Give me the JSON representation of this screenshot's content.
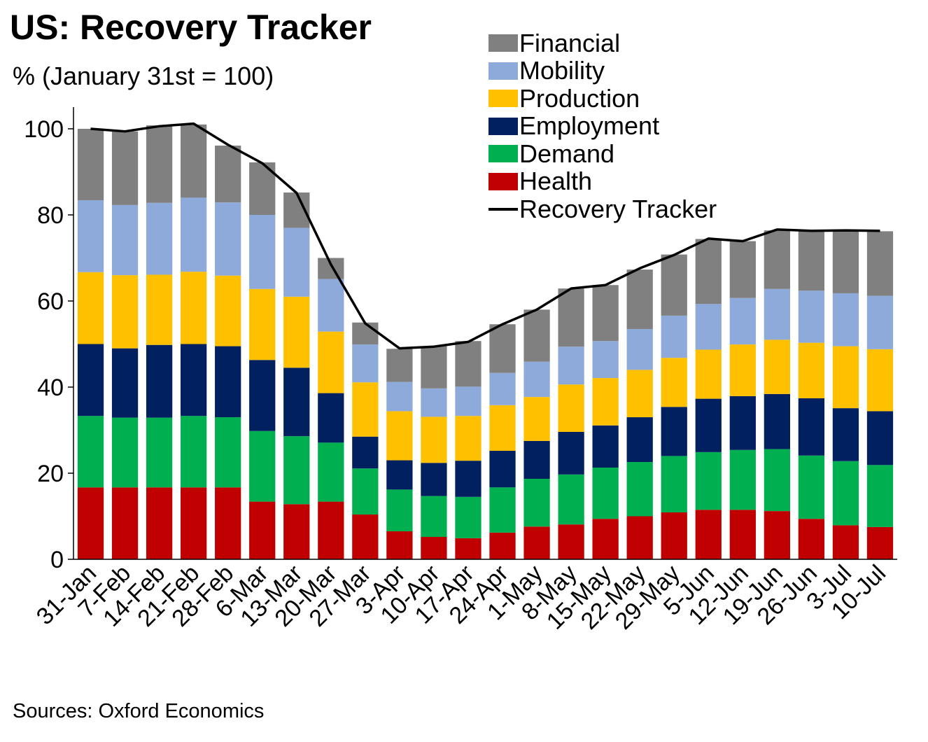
{
  "title": "US: Recovery Tracker",
  "subtitle": "% (January 31st = 100)",
  "source": "Sources: Oxford Economics",
  "chart_data": {
    "type": "bar",
    "stacked": true,
    "title": "US: Recovery Tracker",
    "ylabel": "% (January 31st = 100)",
    "xlabel": "",
    "ylim": [
      0,
      105
    ],
    "yticks": [
      0,
      20,
      40,
      60,
      80,
      100
    ],
    "grid": false,
    "legend_position": "top-right",
    "categories": [
      "31-Jan",
      "7-Feb",
      "14-Feb",
      "21-Feb",
      "28-Feb",
      "6-Mar",
      "13-Mar",
      "20-Mar",
      "27-Mar",
      "3-Apr",
      "10-Apr",
      "17-Apr",
      "24-Apr",
      "1-May",
      "8-May",
      "15-May",
      "22-May",
      "29-May",
      "5-Jun",
      "12-Jun",
      "19-Jun",
      "26-Jun",
      "3-Jul",
      "10-Jul"
    ],
    "series": [
      {
        "name": "Health",
        "color": "#c00000",
        "values": [
          16.7,
          16.7,
          16.7,
          16.7,
          16.7,
          13.4,
          12.8,
          13.4,
          10.4,
          6.5,
          5.2,
          4.9,
          6.2,
          7.6,
          8.1,
          9.4,
          10.0,
          10.9,
          11.5,
          11.5,
          11.2,
          9.4,
          7.9,
          7.5
        ]
      },
      {
        "name": "Demand",
        "color": "#00b050",
        "values": [
          16.6,
          16.2,
          16.2,
          16.6,
          16.3,
          16.4,
          15.8,
          13.7,
          10.7,
          9.7,
          9.5,
          9.6,
          10.5,
          11.1,
          11.6,
          11.9,
          12.6,
          13.1,
          13.4,
          13.9,
          14.4,
          14.7,
          14.9,
          14.4
        ]
      },
      {
        "name": "Employment",
        "color": "#002060",
        "values": [
          16.7,
          16.1,
          16.9,
          16.7,
          16.5,
          16.5,
          15.9,
          11.5,
          7.4,
          6.8,
          7.7,
          8.4,
          8.5,
          8.8,
          9.9,
          9.8,
          10.4,
          11.4,
          12.4,
          12.5,
          12.8,
          13.3,
          12.3,
          12.5
        ]
      },
      {
        "name": "Production",
        "color": "#ffc000",
        "values": [
          16.7,
          17.0,
          16.3,
          16.8,
          16.4,
          16.5,
          16.5,
          14.3,
          12.6,
          11.4,
          10.7,
          10.4,
          10.6,
          10.2,
          11.0,
          11.0,
          11.0,
          11.4,
          11.4,
          12.0,
          12.6,
          12.9,
          14.4,
          14.4
        ]
      },
      {
        "name": "Mobility",
        "color": "#8eaadb",
        "values": [
          16.7,
          16.3,
          16.7,
          17.2,
          17.0,
          17.2,
          16.0,
          12.2,
          8.8,
          6.8,
          6.6,
          6.8,
          7.5,
          8.2,
          8.8,
          8.6,
          9.5,
          9.8,
          10.6,
          10.8,
          11.8,
          12.1,
          12.3,
          12.4
        ]
      },
      {
        "name": "Financial",
        "color": "#808080",
        "values": [
          16.6,
          17.1,
          18.0,
          17.0,
          13.2,
          12.2,
          8.2,
          4.9,
          5.1,
          7.7,
          9.8,
          10.6,
          11.3,
          12.1,
          13.5,
          13.0,
          13.8,
          14.2,
          15.1,
          13.2,
          13.6,
          13.9,
          14.5,
          15.0
        ]
      }
    ],
    "line_series": {
      "name": "Recovery Tracker",
      "color": "#000000",
      "values": [
        100.0,
        99.4,
        100.6,
        101.2,
        96.3,
        92.0,
        85.1,
        68.5,
        54.8,
        49.0,
        49.4,
        50.5,
        54.6,
        58.0,
        62.9,
        63.7,
        67.6,
        70.7,
        74.5,
        73.9,
        76.6,
        76.3,
        76.4,
        76.3
      ]
    }
  },
  "legend": [
    {
      "label": "Financial",
      "color": "#808080"
    },
    {
      "label": "Mobility",
      "color": "#8eaadb"
    },
    {
      "label": "Production",
      "color": "#ffc000"
    },
    {
      "label": "Employment",
      "color": "#002060"
    },
    {
      "label": "Demand",
      "color": "#00b050"
    },
    {
      "label": "Health",
      "color": "#c00000"
    }
  ],
  "legend_line_label": "Recovery Tracker"
}
